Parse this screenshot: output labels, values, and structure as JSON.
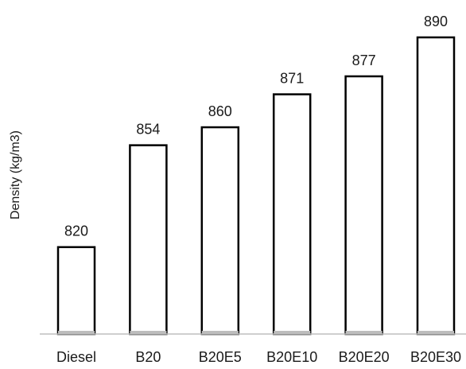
{
  "chart_data": {
    "type": "bar",
    "title": "",
    "xlabel": "",
    "ylabel": "Density (kg/m3)",
    "categories": [
      "Diesel",
      "B20",
      "B20E5",
      "B20E10",
      "B20E20",
      "B20E30"
    ],
    "values": [
      820,
      854,
      860,
      871,
      877,
      890
    ],
    "data_labels": [
      "820",
      "854",
      "860",
      "871",
      "877",
      "890"
    ],
    "ylim": [
      791,
      890
    ],
    "grid": false,
    "legend": "none",
    "colors": {
      "bar_fill": "#ffffff",
      "bar_stroke": "#000000",
      "axis": "#bfbfbf"
    }
  }
}
